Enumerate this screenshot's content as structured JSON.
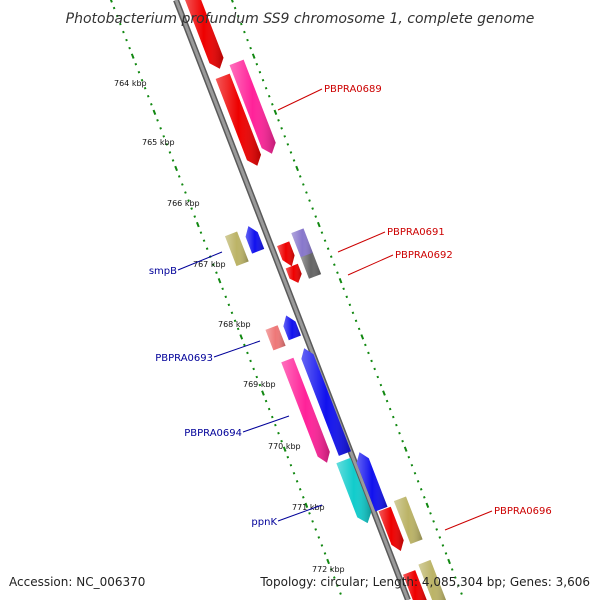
{
  "title": "Photobacterium profundum SS9 chromosome 1, complete genome",
  "footer": {
    "accession": "Accession: NC_006370",
    "summary": "Topology: circular; Length: 4,085,304 bp; Genes: 3,606"
  },
  "colors": {
    "backbone": "#888888",
    "scale_dots": "#118811",
    "forward_label": "#cc0000",
    "reverse_label": "#000099"
  },
  "kbp_labels": [
    "764 kbp",
    "765 kbp",
    "766 kbp",
    "767 kbp",
    "768 kbp",
    "769 kbp",
    "770 kbp",
    "771 kbp",
    "772 kbp"
  ],
  "gene_labels": {
    "PBPRA0689": "PBPRA0689",
    "PBPRA0691": "PBPRA0691",
    "PBPRA0692": "PBPRA0692",
    "PBPRA0696": "PBPRA0696",
    "smpB": "smpB",
    "PBPRA0693": "PBPRA0693",
    "PBPRA0694": "PBPRA0694",
    "ppnK": "ppnK"
  },
  "features": [
    {
      "name": "gene-top-red",
      "color": "#ee0000"
    },
    {
      "name": "gene-red-2",
      "color": "#ee0000"
    },
    {
      "name": "gene-PBPRA0689",
      "color": "#ff2299"
    },
    {
      "name": "gene-smpB",
      "color": "#bbb366"
    },
    {
      "name": "gene-blue-1",
      "color": "#1111ee"
    },
    {
      "name": "gene-red-3",
      "color": "#ee0000"
    },
    {
      "name": "gene-PBPRA0691",
      "color": "#8877cc"
    },
    {
      "name": "gene-red-4",
      "color": "#ee0000"
    },
    {
      "name": "gene-PBPRA0692",
      "color": "#666666"
    },
    {
      "name": "gene-PBPRA0693",
      "color": "#ee7777"
    },
    {
      "name": "gene-blue-2",
      "color": "#1111ee"
    },
    {
      "name": "gene-PBPRA0694",
      "color": "#ff2299"
    },
    {
      "name": "gene-blue-3",
      "color": "#1111ee"
    },
    {
      "name": "gene-ppnK",
      "color": "#11cccc"
    },
    {
      "name": "gene-blue-4",
      "color": "#1111ee"
    },
    {
      "name": "gene-red-5",
      "color": "#ee0000"
    },
    {
      "name": "gene-PBPRA0696",
      "color": "#bbb366"
    },
    {
      "name": "gene-red-6",
      "color": "#ee0000"
    },
    {
      "name": "gene-khaki-bottom",
      "color": "#bbb366"
    }
  ]
}
